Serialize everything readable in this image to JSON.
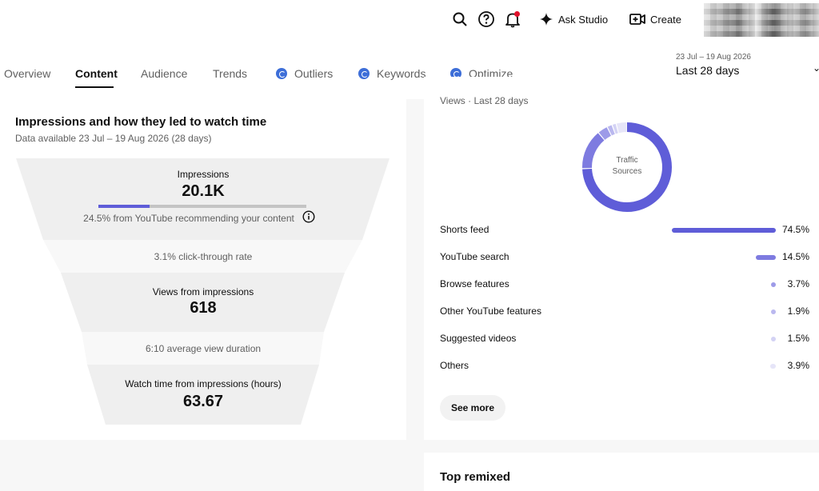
{
  "header": {
    "ask_studio_label": "Ask Studio",
    "create_label": "Create",
    "icons": [
      "search-icon",
      "help-icon",
      "notifications-icon",
      "sparkle-icon",
      "create-video-icon"
    ]
  },
  "tabs": [
    {
      "label": "Overview"
    },
    {
      "label": "Content"
    },
    {
      "label": "Audience"
    },
    {
      "label": "Trends"
    },
    {
      "label": "Outliers"
    },
    {
      "label": "Keywords"
    },
    {
      "label": "Optimize"
    }
  ],
  "date_range": {
    "dates": "23 Jul – 19 Aug 2026",
    "label": "Last 28 days"
  },
  "impressions_card": {
    "title": "Impressions and how they led to watch time",
    "subtitle": "Data available 23 Jul – 19 Aug 2026 (28 days)",
    "impressions_label": "Impressions",
    "impressions_value": "20.1K",
    "impressions_bar_fraction": 0.245,
    "recommend_note": "24.5% from YouTube recommending your content",
    "ctr_note": "3.1% click-through rate",
    "views_label": "Views from impressions",
    "views_value": "618",
    "avd_note": "6:10 average view duration",
    "watch_label": "Watch time from impressions (hours)",
    "watch_value": "63.67"
  },
  "traffic_card": {
    "subtitle": "Views · Last 28 days",
    "donut_label_line1": "Traffic",
    "donut_label_line2": "Sources",
    "sources": [
      {
        "name": "Shorts feed",
        "pct": "74.5%",
        "value": 74.5,
        "color": "#5f5dd8"
      },
      {
        "name": "YouTube search",
        "pct": "14.5%",
        "value": 14.5,
        "color": "#7e7be0"
      },
      {
        "name": "Browse features",
        "pct": "3.7%",
        "value": 3.7,
        "color": "#9d9be8"
      },
      {
        "name": "Other YouTube features",
        "pct": "1.9%",
        "value": 1.9,
        "color": "#bab8ef"
      },
      {
        "name": "Suggested videos",
        "pct": "1.5%",
        "value": 1.5,
        "color": "#d3d2f4"
      },
      {
        "name": "Others",
        "pct": "3.9%",
        "value": 3.9,
        "color": "#e6e5f8"
      }
    ],
    "see_more_label": "See more"
  },
  "top_remixed": {
    "title": "Top remixed"
  }
}
